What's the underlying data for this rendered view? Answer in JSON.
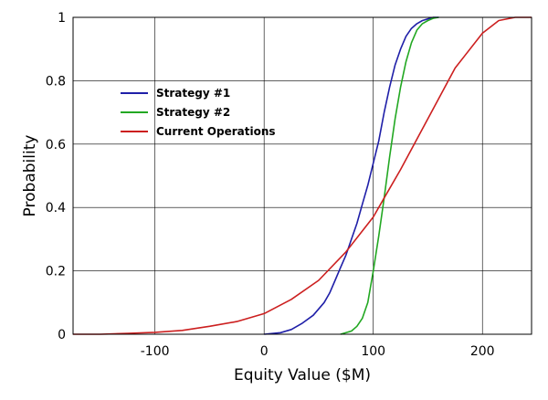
{
  "chart_data": {
    "type": "line",
    "title": "",
    "xlabel": "Equity Value ($M)",
    "ylabel": "Probability",
    "xlim": [
      -175,
      245
    ],
    "ylim": [
      0,
      1
    ],
    "x_ticks": [
      -100,
      0,
      100,
      200
    ],
    "x_tick_labels": [
      "-100",
      "0",
      "100",
      "200"
    ],
    "y_ticks": [
      0,
      0.2,
      0.4,
      0.6,
      0.8,
      1
    ],
    "y_tick_labels": [
      "0",
      "0.2",
      "0.4",
      "0.6",
      "0.8",
      "1"
    ],
    "grid": true,
    "legend_position": "upper-left",
    "series": [
      {
        "name": "Strategy #1",
        "color": "#1f1fa8",
        "x": [
          0,
          15,
          25,
          35,
          45,
          55,
          60,
          65,
          70,
          75,
          80,
          85,
          90,
          95,
          100,
          105,
          110,
          115,
          120,
          125,
          130,
          135,
          140,
          145,
          150,
          155,
          160
        ],
        "y": [
          0.0,
          0.005,
          0.015,
          0.035,
          0.06,
          0.1,
          0.13,
          0.17,
          0.21,
          0.25,
          0.3,
          0.35,
          0.41,
          0.47,
          0.54,
          0.61,
          0.7,
          0.78,
          0.85,
          0.9,
          0.94,
          0.965,
          0.98,
          0.99,
          0.995,
          1.0,
          1.0
        ]
      },
      {
        "name": "Strategy #2",
        "color": "#22a822",
        "x": [
          70,
          80,
          85,
          90,
          95,
          100,
          105,
          110,
          115,
          120,
          125,
          130,
          135,
          140,
          145,
          150,
          155,
          160
        ],
        "y": [
          0.0,
          0.01,
          0.025,
          0.05,
          0.1,
          0.2,
          0.31,
          0.43,
          0.56,
          0.68,
          0.78,
          0.86,
          0.92,
          0.96,
          0.98,
          0.99,
          0.997,
          1.0
        ]
      },
      {
        "name": "Current Operations",
        "color": "#cc1f1f",
        "x": [
          -175,
          -150,
          -125,
          -100,
          -75,
          -50,
          -25,
          0,
          25,
          50,
          75,
          100,
          110,
          125,
          150,
          175,
          200,
          215,
          230,
          245
        ],
        "y": [
          0.0,
          0.0,
          0.003,
          0.006,
          0.012,
          0.025,
          0.04,
          0.065,
          0.11,
          0.17,
          0.26,
          0.37,
          0.43,
          0.52,
          0.68,
          0.84,
          0.95,
          0.99,
          1.0,
          1.0
        ]
      }
    ]
  }
}
